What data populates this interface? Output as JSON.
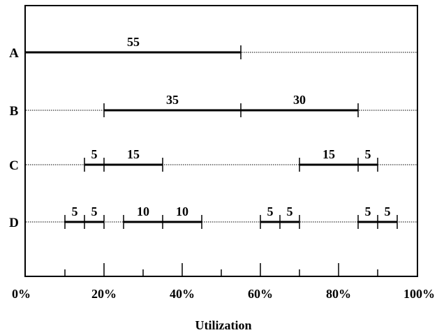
{
  "chart_data": {
    "type": "utilization-interval-diagram",
    "xlabel": "Utilization",
    "xlim": [
      0,
      100
    ],
    "x_ticks": [
      {
        "value": 0,
        "label": "0%"
      },
      {
        "value": 20,
        "label": "20%"
      },
      {
        "value": 40,
        "label": "40%"
      },
      {
        "value": 60,
        "label": "60%"
      },
      {
        "value": 80,
        "label": "80%"
      },
      {
        "value": 100,
        "label": "100%"
      }
    ],
    "rows": [
      {
        "label": "A",
        "segments": [
          {
            "start": 0,
            "end": 55,
            "label": "55"
          }
        ]
      },
      {
        "label": "B",
        "segments": [
          {
            "start": 20,
            "end": 55,
            "label": "35"
          },
          {
            "start": 55,
            "end": 85,
            "label": "30"
          }
        ]
      },
      {
        "label": "C",
        "segments": [
          {
            "start": 15,
            "end": 20,
            "label": "5"
          },
          {
            "start": 20,
            "end": 35,
            "label": "15"
          },
          {
            "start": 70,
            "end": 85,
            "label": "15"
          },
          {
            "start": 85,
            "end": 90,
            "label": "5"
          }
        ]
      },
      {
        "label": "D",
        "segments": [
          {
            "start": 10,
            "end": 15,
            "label": "5"
          },
          {
            "start": 15,
            "end": 20,
            "label": "5"
          },
          {
            "start": 25,
            "end": 35,
            "label": "10"
          },
          {
            "start": 35,
            "end": 45,
            "label": "10"
          },
          {
            "start": 60,
            "end": 65,
            "label": "5"
          },
          {
            "start": 65,
            "end": 70,
            "label": "5"
          },
          {
            "start": 85,
            "end": 90,
            "label": "5"
          },
          {
            "start": 90,
            "end": 95,
            "label": "5"
          }
        ]
      }
    ]
  }
}
